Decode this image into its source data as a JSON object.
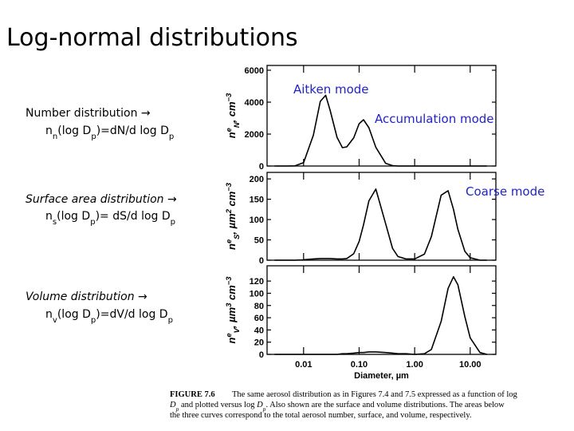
{
  "title": "Log-normal distributions",
  "descriptions": [
    {
      "heading": "Number distribution →",
      "formula": [
        {
          "text": "n"
        },
        {
          "text": "n",
          "pos": "sub"
        },
        {
          "text": "(log D"
        },
        {
          "text": "p",
          "pos": "sub"
        },
        {
          "text": ")=dN/d log D"
        },
        {
          "text": "p",
          "pos": "sub"
        }
      ]
    },
    {
      "heading": "Surface area distribution →",
      "formula": [
        {
          "text": "n"
        },
        {
          "text": "s",
          "pos": "sub"
        },
        {
          "text": "(log D"
        },
        {
          "text": "p",
          "pos": "sub"
        },
        {
          "text": ")= dS/d log D"
        },
        {
          "text": "p",
          "pos": "sub"
        }
      ]
    },
    {
      "heading": "Volume distribution →",
      "formula": [
        {
          "text": "n"
        },
        {
          "text": "v",
          "pos": "sub"
        },
        {
          "text": "(log D"
        },
        {
          "text": "p",
          "pos": "sub"
        },
        {
          "text": ")=dV/d log D"
        },
        {
          "text": "p",
          "pos": "sub"
        }
      ]
    }
  ],
  "chart_data": [
    {
      "type": "line",
      "color": "#000000",
      "xscale": "log",
      "xlim": [
        0.0022,
        29
      ],
      "xticks": [
        0.01,
        0.1,
        1,
        10
      ],
      "ylim": [
        0,
        6300
      ],
      "yticks": [
        0,
        2000,
        4000,
        6000
      ],
      "ylabel": [
        {
          "text": "n"
        },
        {
          "text": "e",
          "pos": "sup"
        },
        {
          "text": "N",
          "pos": "sub"
        },
        {
          "text": ", cm"
        },
        {
          "text": "−3",
          "pos": "sup"
        }
      ],
      "annotations": [
        "Aitken mode",
        "Accumulation mode"
      ],
      "x": [
        0.003,
        0.005,
        0.007,
        0.01,
        0.015,
        0.02,
        0.025,
        0.03,
        0.04,
        0.05,
        0.06,
        0.08,
        0.1,
        0.12,
        0.15,
        0.2,
        0.3,
        0.4,
        0.5,
        0.7,
        1,
        1.5,
        2,
        3,
        4,
        5,
        6,
        8,
        10,
        15,
        20
      ],
      "values": [
        0,
        0,
        10,
        210,
        1930,
        4050,
        4430,
        3500,
        1800,
        1150,
        1200,
        1770,
        2650,
        2900,
        2400,
        1170,
        170,
        25,
        0,
        0,
        0,
        0,
        0,
        0,
        0,
        0,
        0,
        0,
        0,
        0,
        0
      ]
    },
    {
      "type": "line",
      "color": "#000000",
      "xscale": "log",
      "xlim": [
        0.0022,
        29
      ],
      "xticks": [
        0.01,
        0.1,
        1,
        10
      ],
      "ylim": [
        0,
        216
      ],
      "yticks": [
        0,
        50,
        100,
        150,
        200
      ],
      "ylabel": [
        {
          "text": "n"
        },
        {
          "text": "e",
          "pos": "sup"
        },
        {
          "text": "S",
          "pos": "sub"
        },
        {
          "text": ",  µm"
        },
        {
          "text": "2",
          "pos": "sup"
        },
        {
          "text": "  cm"
        },
        {
          "text": "−3",
          "pos": "sup"
        }
      ],
      "annotations": [
        "Coarse mode"
      ],
      "x": [
        0.003,
        0.005,
        0.007,
        0.01,
        0.015,
        0.02,
        0.025,
        0.03,
        0.04,
        0.05,
        0.06,
        0.08,
        0.1,
        0.12,
        0.15,
        0.2,
        0.3,
        0.4,
        0.5,
        0.7,
        1,
        1.5,
        2,
        3,
        4,
        5,
        6,
        8,
        10,
        15,
        20
      ],
      "values": [
        0,
        0,
        0,
        1,
        3,
        4,
        4,
        4,
        3,
        3,
        4,
        16,
        46,
        87,
        146,
        175,
        90,
        29,
        9,
        3,
        3,
        15,
        58,
        160,
        171,
        125,
        76,
        22,
        6,
        0,
        0
      ]
    },
    {
      "type": "line",
      "color": "#000000",
      "xscale": "log",
      "xlim": [
        0.0022,
        29
      ],
      "xticks": [
        {
          "value": 0.01,
          "label": "0.01"
        },
        {
          "value": 0.1,
          "label": "0.10"
        },
        {
          "value": 1,
          "label": "1.00"
        },
        {
          "value": 10,
          "label": "10.00"
        }
      ],
      "xlabel": "Diameter,  µm",
      "ylim": [
        0,
        145
      ],
      "yticks": [
        0,
        20,
        40,
        60,
        80,
        100,
        120
      ],
      "ylabel": [
        {
          "text": "n"
        },
        {
          "text": "e",
          "pos": "sup"
        },
        {
          "text": "V",
          "pos": "sub"
        },
        {
          "text": ",  µm"
        },
        {
          "text": "3",
          "pos": "sup"
        },
        {
          "text": " cm"
        },
        {
          "text": "−3",
          "pos": "sup"
        }
      ],
      "x": [
        0.003,
        0.005,
        0.007,
        0.01,
        0.015,
        0.02,
        0.025,
        0.03,
        0.04,
        0.05,
        0.06,
        0.08,
        0.1,
        0.12,
        0.15,
        0.2,
        0.3,
        0.4,
        0.5,
        0.7,
        1,
        1.5,
        2,
        3,
        4,
        5,
        6,
        8,
        10,
        15,
        20
      ],
      "values": [
        0,
        0,
        0,
        0,
        0,
        0,
        0,
        0,
        0,
        1,
        1,
        2,
        3,
        3,
        4,
        4,
        3,
        2,
        1,
        1,
        0,
        1,
        8,
        54,
        108,
        127,
        114,
        62,
        27,
        3,
        0
      ]
    }
  ],
  "caption": {
    "label": "FIGURE 7.6",
    "lines": [
      [
        {
          "text": "The same aerosol distribution as in Figures 7.4 and 7.5 expressed as a function of log"
        }
      ],
      [
        {
          "text": "D",
          "italic": true
        },
        {
          "text": "p",
          "pos": "sub",
          "italic": true
        },
        {
          "text": " and plotted versus log  "
        },
        {
          "text": "D",
          "italic": true
        },
        {
          "text": "p",
          "pos": "sub",
          "italic": true
        },
        {
          "text": ". Also shown are the surface and volume distributions. The areas below"
        }
      ],
      [
        {
          "text": "the three curves correspond to the total aerosol number, surface, and volume, respectively."
        }
      ]
    ]
  }
}
